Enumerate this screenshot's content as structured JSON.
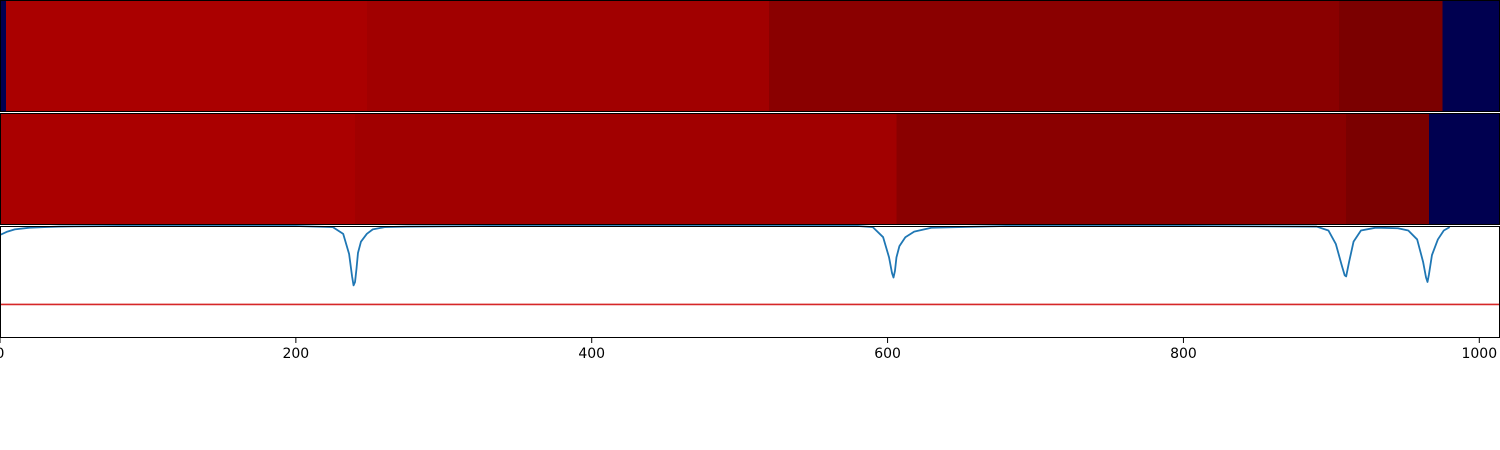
{
  "chart_data": [
    {
      "type": "heatmap",
      "panel": "top",
      "x_unit": "sample",
      "segments": [
        {
          "start": 0,
          "end": 4,
          "color": "#000050"
        },
        {
          "start": 4,
          "end": 248,
          "color": "#aa0000"
        },
        {
          "start": 248,
          "end": 520,
          "color": "#a10000"
        },
        {
          "start": 520,
          "end": 905,
          "color": "#8a0000"
        },
        {
          "start": 905,
          "end": 975,
          "color": "#7b0000"
        },
        {
          "start": 975,
          "end": 1014,
          "color": "#000050"
        }
      ]
    },
    {
      "type": "heatmap",
      "panel": "middle",
      "x_unit": "sample",
      "segments": [
        {
          "start": 0,
          "end": 240,
          "color": "#aa0000"
        },
        {
          "start": 240,
          "end": 606,
          "color": "#a10000"
        },
        {
          "start": 606,
          "end": 910,
          "color": "#8a0000"
        },
        {
          "start": 910,
          "end": 966,
          "color": "#7b0000"
        },
        {
          "start": 966,
          "end": 1014,
          "color": "#000050"
        }
      ]
    },
    {
      "type": "line",
      "panel": "bottom",
      "xlim": [
        0,
        1014
      ],
      "ylim": [
        0,
        1
      ],
      "series": [
        {
          "color": "#1f77b4",
          "x": [
            0,
            5,
            10,
            20,
            30,
            40,
            50,
            80,
            150,
            200,
            225,
            232,
            236,
            238,
            239,
            240,
            241,
            242,
            244,
            248,
            252,
            260,
            275,
            330,
            400,
            500,
            580,
            590,
            597,
            601,
            603,
            604,
            605,
            606,
            608,
            612,
            618,
            630,
            680,
            800,
            890,
            898,
            903,
            907,
            909,
            910,
            912,
            915,
            920,
            930,
            945,
            952,
            958,
            962,
            964,
            965,
            966,
            968,
            972,
            976,
            980
          ],
          "y": [
            0.92,
            0.95,
            0.97,
            0.985,
            0.99,
            0.995,
            0.997,
            1.0,
            1.0,
            1.0,
            0.99,
            0.93,
            0.75,
            0.55,
            0.47,
            0.5,
            0.62,
            0.76,
            0.86,
            0.93,
            0.97,
            0.99,
            0.995,
            1.0,
            1.0,
            1.0,
            1.0,
            0.99,
            0.9,
            0.72,
            0.58,
            0.54,
            0.6,
            0.72,
            0.82,
            0.9,
            0.95,
            0.985,
            1.0,
            1.0,
            0.995,
            0.96,
            0.84,
            0.65,
            0.56,
            0.55,
            0.68,
            0.86,
            0.96,
            0.985,
            0.98,
            0.96,
            0.88,
            0.68,
            0.54,
            0.5,
            0.57,
            0.74,
            0.88,
            0.96,
            0.99
          ]
        },
        {
          "color": "#d62728",
          "x": [
            0,
            1014
          ],
          "y": [
            0.3,
            0.3
          ]
        }
      ]
    }
  ],
  "x_axis": {
    "ticks": [
      {
        "value": 0,
        "label": "0"
      },
      {
        "value": 200,
        "label": "200"
      },
      {
        "value": 400,
        "label": "400"
      },
      {
        "value": 600,
        "label": "600"
      },
      {
        "value": 800,
        "label": "800"
      },
      {
        "value": 1000,
        "label": "1000"
      }
    ],
    "xlim": [
      0,
      1014
    ]
  }
}
